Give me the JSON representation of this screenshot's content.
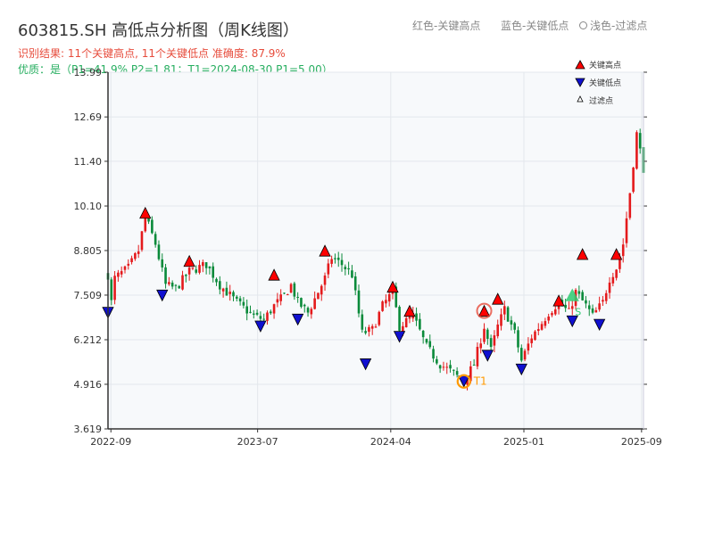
{
  "title": "603815.SH 高低点分析图（周K线图）",
  "info_line1": "识别结果: 11个关键高点, 11个关键低点  准确度: 87.9%",
  "info_line2": "优质：是（P1=41.9%  P2=1.81；T1=2024-08-30 P1=5.00）",
  "top_legend": {
    "red": "红色-关键高点",
    "blue": "蓝色-关键低点",
    "light": "浅色-过滤点"
  },
  "legend": {
    "high": "关键高点",
    "low": "关键低点",
    "filtered": "过滤点"
  },
  "t1_label": "T1",
  "filtered_label": "S",
  "colors": {
    "up": "#e41a1c",
    "down": "#0a8a3a",
    "high_marker": "#ff0000",
    "low_marker": "#1010d0",
    "t1_circle": "#ff9900",
    "filtered_green": "#2ecc71",
    "plot_bg": "#f7f9fb",
    "grid": "#e3e7ec"
  },
  "chart_data": {
    "type": "candlestick",
    "x_axis_type": "date",
    "x_range": [
      "2022-08-26",
      "2025-09-05"
    ],
    "y_ticks": [
      "3.619",
      "4.916",
      "6.212",
      "7.509",
      "8.805",
      "10.10",
      "11.40",
      "12.69",
      "13.99"
    ],
    "ylim": [
      3.619,
      13.99
    ],
    "x_ticks": [
      "2022-09",
      "2023-07",
      "2024-04",
      "2025-01",
      "2025-09"
    ],
    "x_tick_dates": [
      "2022-09-01",
      "2023-07-01",
      "2024-04-01",
      "2025-01-01",
      "2025-09-01"
    ],
    "close_path": [
      [
        "2022-08-26",
        8.1
      ],
      [
        "2022-09-02",
        7.3
      ],
      [
        "2022-09-09",
        8.0
      ],
      [
        "2022-10-07",
        8.3
      ],
      [
        "2022-10-28",
        8.8
      ],
      [
        "2022-11-11",
        9.8
      ],
      [
        "2022-12-02",
        9.0
      ],
      [
        "2022-12-23",
        7.8
      ],
      [
        "2023-01-13",
        7.7
      ],
      [
        "2023-02-10",
        8.2
      ],
      [
        "2023-03-17",
        8.4
      ],
      [
        "2023-04-14",
        7.8
      ],
      [
        "2023-05-19",
        7.3
      ],
      [
        "2023-06-23",
        6.9
      ],
      [
        "2023-07-14",
        6.8
      ],
      [
        "2023-08-04",
        7.2
      ],
      [
        "2023-08-25",
        7.5
      ],
      [
        "2023-09-08",
        7.8
      ],
      [
        "2023-09-22",
        7.3
      ],
      [
        "2023-10-13",
        7.0
      ],
      [
        "2023-10-27",
        7.4
      ],
      [
        "2023-11-17",
        8.0
      ],
      [
        "2023-12-01",
        8.6
      ],
      [
        "2023-12-22",
        8.4
      ],
      [
        "2024-01-12",
        8.1
      ],
      [
        "2024-02-02",
        6.4
      ],
      [
        "2024-02-23",
        6.5
      ],
      [
        "2024-03-15",
        7.2
      ],
      [
        "2024-04-05",
        7.6
      ],
      [
        "2024-04-19",
        6.6
      ],
      [
        "2024-05-17",
        6.9
      ],
      [
        "2024-06-14",
        6.0
      ],
      [
        "2024-07-12",
        5.5
      ],
      [
        "2024-08-02",
        5.3
      ],
      [
        "2024-08-30",
        5.0
      ],
      [
        "2024-09-20",
        5.5
      ],
      [
        "2024-10-11",
        6.6
      ],
      [
        "2024-10-25",
        5.9
      ],
      [
        "2024-11-08",
        6.6
      ],
      [
        "2024-11-22",
        7.1
      ],
      [
        "2024-12-13",
        6.4
      ],
      [
        "2024-12-27",
        5.6
      ],
      [
        "2025-01-17",
        6.3
      ],
      [
        "2025-02-07",
        6.7
      ],
      [
        "2025-02-21",
        7.0
      ],
      [
        "2025-03-14",
        7.3
      ],
      [
        "2025-04-04",
        7.0
      ],
      [
        "2025-04-18",
        7.6
      ],
      [
        "2025-05-09",
        7.2
      ],
      [
        "2025-05-23",
        6.9
      ],
      [
        "2025-06-13",
        7.3
      ],
      [
        "2025-06-27",
        8.0
      ],
      [
        "2025-07-11",
        8.3
      ],
      [
        "2025-07-25",
        9.0
      ],
      [
        "2025-08-08",
        10.5
      ],
      [
        "2025-08-22",
        12.2
      ],
      [
        "2025-09-05",
        11.2
      ]
    ],
    "key_highs": [
      {
        "date": "2022-11-11",
        "value": 9.9
      },
      {
        "date": "2023-02-10",
        "value": 8.5
      },
      {
        "date": "2023-08-04",
        "value": 8.1
      },
      {
        "date": "2023-11-17",
        "value": 8.8
      },
      {
        "date": "2024-04-05",
        "value": 7.75
      },
      {
        "date": "2024-05-10",
        "value": 7.05
      },
      {
        "date": "2024-10-11",
        "value": 7.05
      },
      {
        "date": "2024-11-08",
        "value": 7.4
      },
      {
        "date": "2025-03-14",
        "value": 7.35
      },
      {
        "date": "2025-05-02",
        "value": 8.7
      },
      {
        "date": "2025-07-11",
        "value": 8.7
      }
    ],
    "key_lows": [
      {
        "date": "2022-08-26",
        "value": 7.0
      },
      {
        "date": "2022-12-16",
        "value": 7.5
      },
      {
        "date": "2023-07-07",
        "value": 6.6
      },
      {
        "date": "2023-09-22",
        "value": 6.8
      },
      {
        "date": "2024-02-09",
        "value": 5.5
      },
      {
        "date": "2024-04-19",
        "value": 6.3
      },
      {
        "date": "2024-08-30",
        "value": 5.0
      },
      {
        "date": "2024-10-18",
        "value": 5.75
      },
      {
        "date": "2024-12-27",
        "value": 5.35
      },
      {
        "date": "2025-04-11",
        "value": 6.75
      },
      {
        "date": "2025-06-06",
        "value": 6.65
      }
    ],
    "filtered_points": [
      {
        "date": "2025-04-11",
        "value": 7.5
      }
    ],
    "t1": {
      "date": "2024-08-30",
      "value": 5.0
    },
    "grid": true,
    "legend_position": "top-right"
  }
}
